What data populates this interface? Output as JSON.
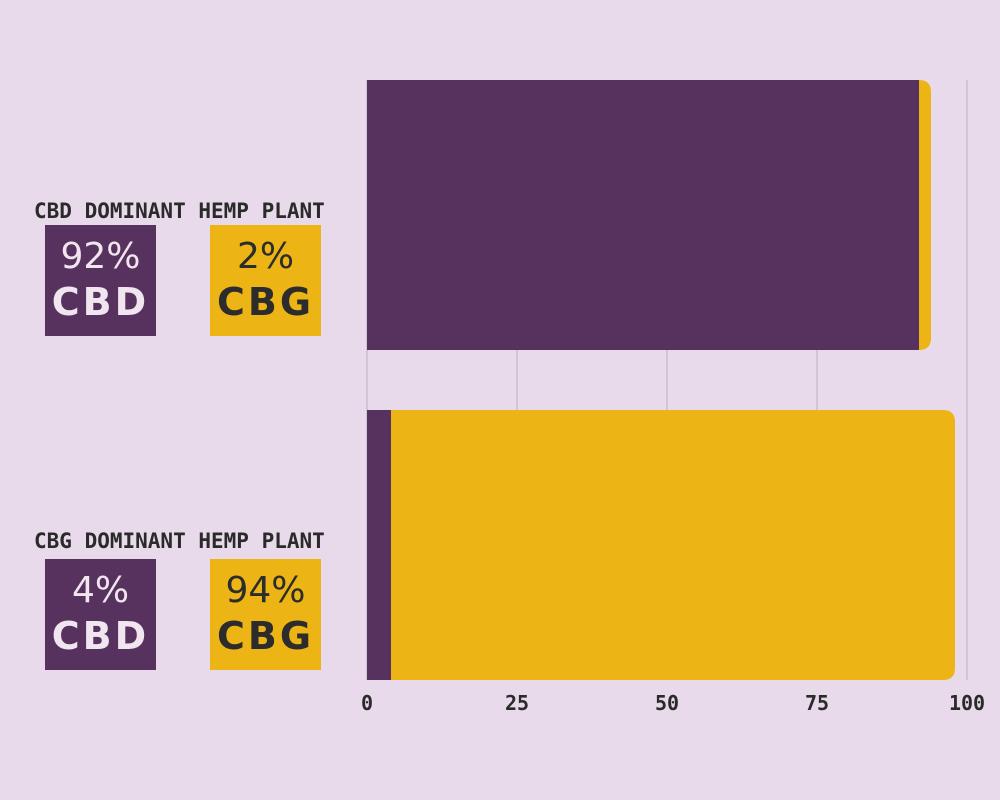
{
  "colors": {
    "cbd": "#58325e",
    "cbg": "#ecb515",
    "background": "#e8daea",
    "grid": "#c9bdcc"
  },
  "chart_data": {
    "type": "bar",
    "orientation": "horizontal",
    "stacked": true,
    "categories": [
      "CBD DOMINANT HEMP PLANT",
      "CBG DOMINANT HEMP PLANT"
    ],
    "series": [
      {
        "name": "CBD",
        "values": [
          92,
          4
        ]
      },
      {
        "name": "CBG",
        "values": [
          2,
          94
        ]
      }
    ],
    "xlim": [
      0,
      100
    ],
    "xticks": [
      "0",
      "25",
      "50",
      "75",
      "100"
    ],
    "grid": true
  },
  "panels": [
    {
      "title": "CBD DOMINANT HEMP PLANT",
      "cbd_pct": "92%",
      "cbd_label": "CBD",
      "cbg_pct": "2%",
      "cbg_label": "CBG"
    },
    {
      "title": "CBG DOMINANT HEMP PLANT",
      "cbd_pct": "4%",
      "cbd_label": "CBD",
      "cbg_pct": "94%",
      "cbg_label": "CBG"
    }
  ]
}
